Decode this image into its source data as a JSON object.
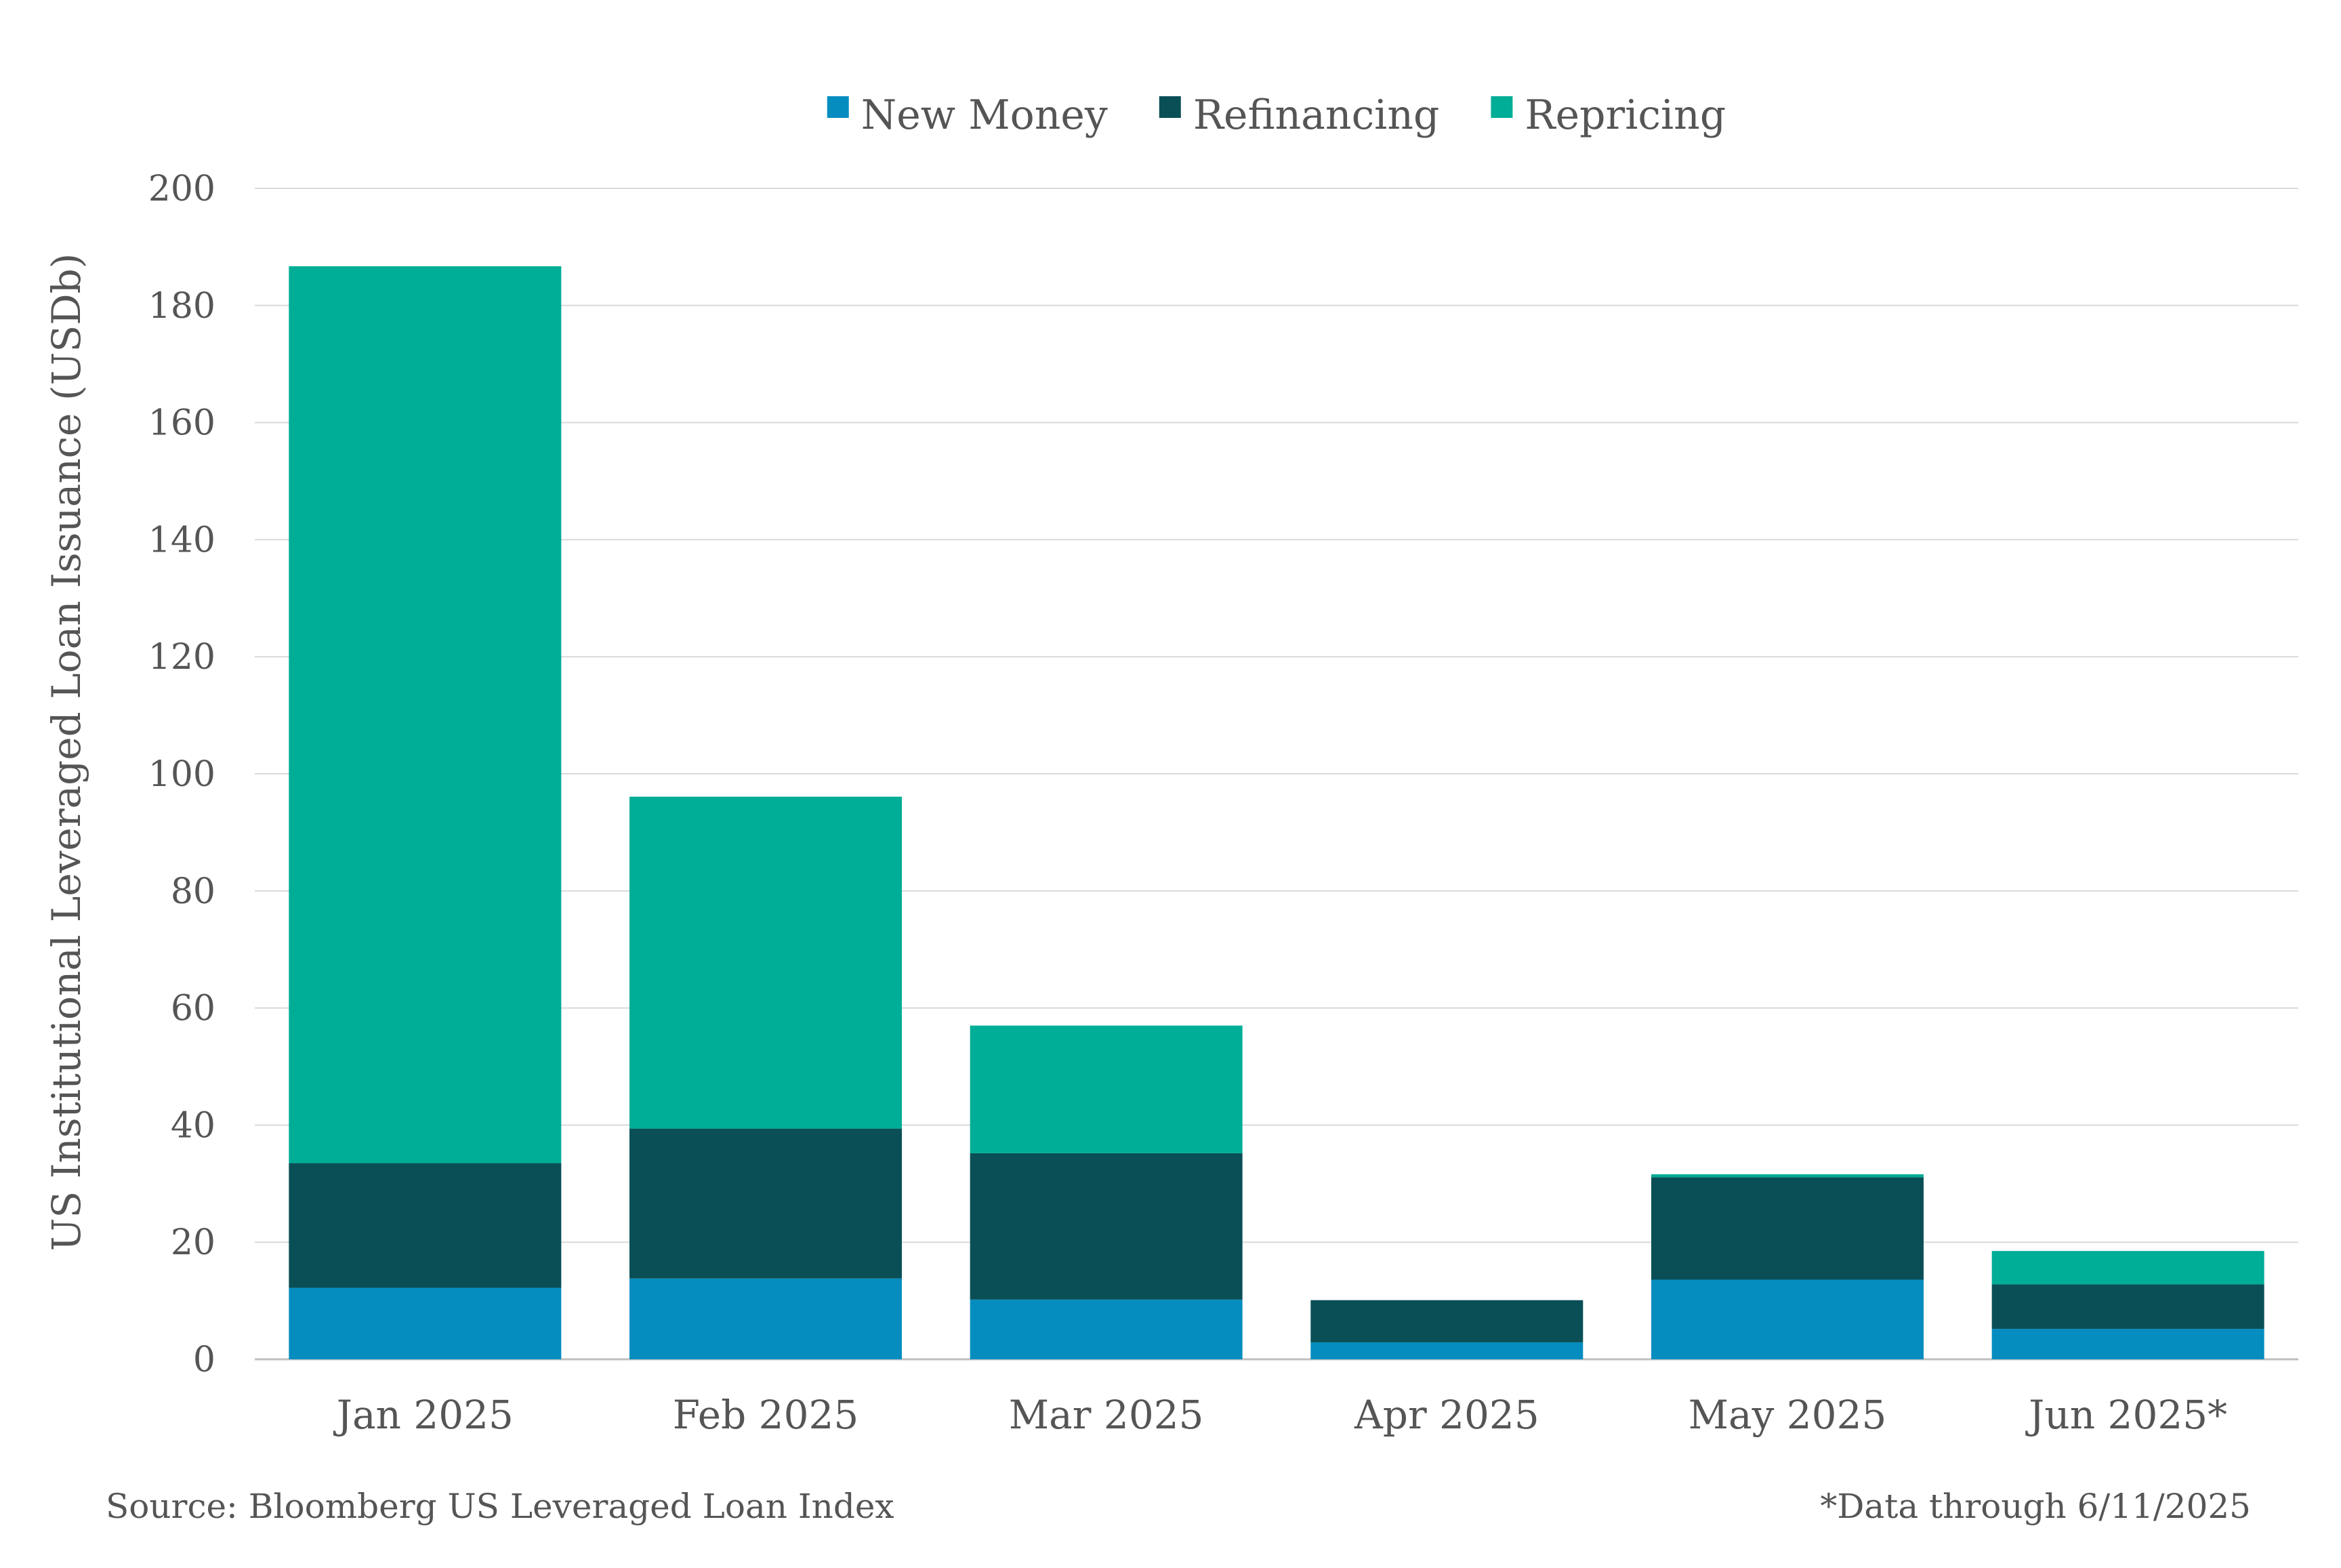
{
  "chart_data": {
    "type": "bar",
    "stacked": true,
    "title": "",
    "xlabel": "",
    "ylabel": "US Institutional Leveraged Loan Issuance (USDb)",
    "ylim": [
      0,
      200
    ],
    "yticks": [
      0,
      20,
      40,
      60,
      80,
      100,
      120,
      140,
      160,
      180,
      200
    ],
    "grid": "horizontal",
    "legend_position": "top-center",
    "categories": [
      "Jan 2025",
      "Feb 2025",
      "Mar 2025",
      "Apr 2025",
      "May 2025",
      "Jun 2025*"
    ],
    "series": [
      {
        "name": "New Money",
        "color": "#058dc0",
        "values": [
          12.2,
          13.8,
          10.2,
          2.9,
          13.6,
          5.2
        ]
      },
      {
        "name": "Refinancing",
        "color": "#0a4f56",
        "values": [
          21.3,
          25.6,
          25.0,
          7.2,
          17.5,
          7.6
        ]
      },
      {
        "name": "Repricing",
        "color": "#00ad96",
        "values": [
          153.2,
          56.7,
          21.8,
          0.0,
          0.5,
          5.7
        ]
      }
    ],
    "source": "Source: Bloomberg US Leveraged Loan Index",
    "footnote": "*Data through 6/11/2025"
  }
}
